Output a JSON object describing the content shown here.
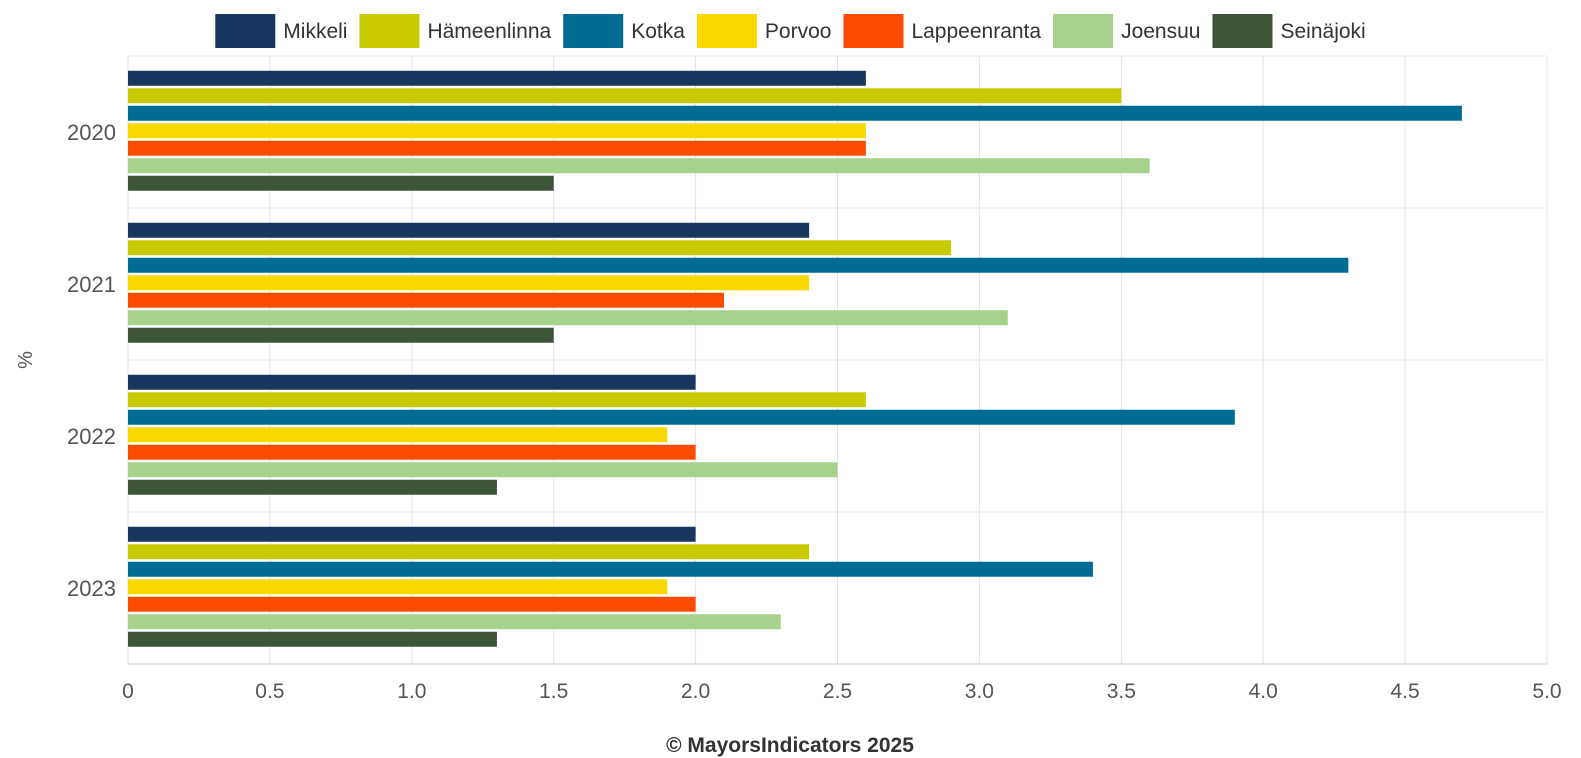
{
  "chart_data": {
    "type": "bar",
    "orientation": "horizontal",
    "categories": [
      "2020",
      "2021",
      "2022",
      "2023"
    ],
    "series": [
      {
        "name": "Mikkeli",
        "color": "#17375e",
        "values": [
          2.6,
          2.4,
          2.0,
          2.0
        ]
      },
      {
        "name": "Hämeenlinna",
        "color": "#c9c900",
        "values": [
          3.5,
          2.9,
          2.6,
          2.4
        ]
      },
      {
        "name": "Kotka",
        "color": "#006b93",
        "values": [
          4.7,
          4.3,
          3.9,
          3.4
        ]
      },
      {
        "name": "Porvoo",
        "color": "#f9d800",
        "values": [
          2.6,
          2.4,
          1.9,
          1.9
        ]
      },
      {
        "name": "Lappeenranta",
        "color": "#fc4c02",
        "values": [
          2.6,
          2.1,
          2.0,
          2.0
        ]
      },
      {
        "name": "Joensuu",
        "color": "#a9d18e",
        "values": [
          3.6,
          3.1,
          2.5,
          2.3
        ]
      },
      {
        "name": "Seinäjoki",
        "color": "#3e5438",
        "values": [
          1.5,
          1.5,
          1.3,
          1.3
        ]
      }
    ],
    "xlim": [
      0,
      5.0
    ],
    "x_ticks": [
      "0",
      "0.5",
      "1.0",
      "1.5",
      "2.0",
      "2.5",
      "3.0",
      "3.5",
      "4.0",
      "4.5",
      "5.0"
    ],
    "ylabel": "%",
    "grid": true,
    "legend_position": "top"
  },
  "footer": {
    "credit": "© MayorsIndicators 2025"
  }
}
